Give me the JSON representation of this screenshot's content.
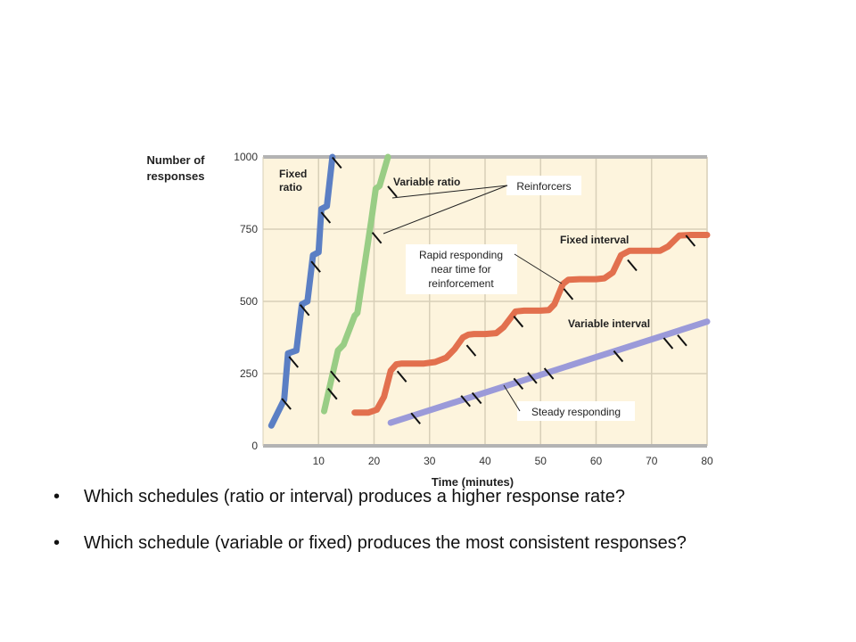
{
  "chart_data": {
    "type": "line",
    "ylabel": "Number of\nresponses",
    "xlabel": "Time (minutes)",
    "xlim": [
      0,
      80
    ],
    "ylim": [
      0,
      1000
    ],
    "x_ticks": [
      10,
      20,
      30,
      40,
      50,
      60,
      70,
      80
    ],
    "y_ticks": [
      0,
      250,
      500,
      750,
      1000
    ],
    "grid": true,
    "background": "#fdf4dd",
    "series": [
      {
        "name": "Fixed\nratio",
        "color": "#5b7fc4",
        "points": [
          [
            1.5,
            70
          ],
          [
            3.8,
            160
          ],
          [
            4.5,
            320
          ],
          [
            6,
            330
          ],
          [
            7,
            490
          ],
          [
            8,
            500
          ],
          [
            9,
            660
          ],
          [
            10,
            670
          ],
          [
            10.5,
            820
          ],
          [
            11.5,
            830
          ],
          [
            12.5,
            1000
          ]
        ],
        "reinforcers": [
          [
            4.2,
            145
          ],
          [
            5.5,
            290
          ],
          [
            7.5,
            470
          ],
          [
            9.5,
            620
          ],
          [
            11.3,
            790
          ],
          [
            13.3,
            980
          ]
        ]
      },
      {
        "name": "Variable ratio",
        "color": "#99cd85",
        "points": [
          [
            11,
            120
          ],
          [
            13.5,
            330
          ],
          [
            14.5,
            350
          ],
          [
            16.5,
            450
          ],
          [
            17,
            460
          ],
          [
            19.5,
            780
          ],
          [
            20.3,
            890
          ],
          [
            21,
            900
          ],
          [
            22.5,
            1000
          ]
        ],
        "reinforcers": [
          [
            12.5,
            180
          ],
          [
            13,
            240
          ],
          [
            20.5,
            720
          ],
          [
            23.3,
            880
          ]
        ]
      },
      {
        "name": "Fixed interval",
        "color": "#e2704e",
        "points": [
          [
            16.5,
            115
          ],
          [
            19,
            115
          ],
          [
            20.5,
            125
          ],
          [
            21.8,
            170
          ],
          [
            23,
            260
          ],
          [
            24,
            282
          ],
          [
            25,
            285
          ],
          [
            29,
            285
          ],
          [
            31,
            290
          ],
          [
            33,
            305
          ],
          [
            34.5,
            335
          ],
          [
            36,
            375
          ],
          [
            37,
            385
          ],
          [
            38,
            387
          ],
          [
            40,
            387
          ],
          [
            42,
            390
          ],
          [
            43.3,
            410
          ],
          [
            45.5,
            465
          ],
          [
            47,
            468
          ],
          [
            50,
            468
          ],
          [
            51.5,
            470
          ],
          [
            52.5,
            490
          ],
          [
            54,
            560
          ],
          [
            55,
            575
          ],
          [
            57,
            577
          ],
          [
            60,
            577
          ],
          [
            61.5,
            580
          ],
          [
            63,
            600
          ],
          [
            64.5,
            660
          ],
          [
            66,
            675
          ],
          [
            69,
            675
          ],
          [
            71.5,
            675
          ],
          [
            73,
            690
          ],
          [
            75,
            728
          ],
          [
            77,
            730
          ],
          [
            80,
            730
          ]
        ],
        "reinforcers": [
          [
            25,
            240
          ],
          [
            37.5,
            330
          ],
          [
            46,
            430
          ],
          [
            55,
            525
          ],
          [
            66.5,
            625
          ],
          [
            77,
            710
          ]
        ]
      },
      {
        "name": "Variable interval",
        "color": "#9b9ad9",
        "points": [
          [
            23,
            80
          ],
          [
            80,
            430
          ]
        ],
        "reinforcers": [
          [
            27.5,
            95
          ],
          [
            36.5,
            155
          ],
          [
            38.5,
            165
          ],
          [
            46,
            215
          ],
          [
            48.5,
            235
          ],
          [
            51.5,
            250
          ],
          [
            64,
            310
          ],
          [
            73,
            355
          ],
          [
            75.5,
            365
          ]
        ]
      }
    ],
    "annotations": {
      "reinforcers": "Reinforcers",
      "rapid": "Rapid responding\nnear time for\nreinforcement",
      "steady": "Steady responding"
    }
  },
  "bullets": [
    {
      "symbol": "•",
      "text": "Which schedules (ratio or interval) produces a higher response rate?"
    },
    {
      "symbol": "•",
      "text": "Which schedule (variable or fixed) produces the most consistent responses?"
    }
  ]
}
